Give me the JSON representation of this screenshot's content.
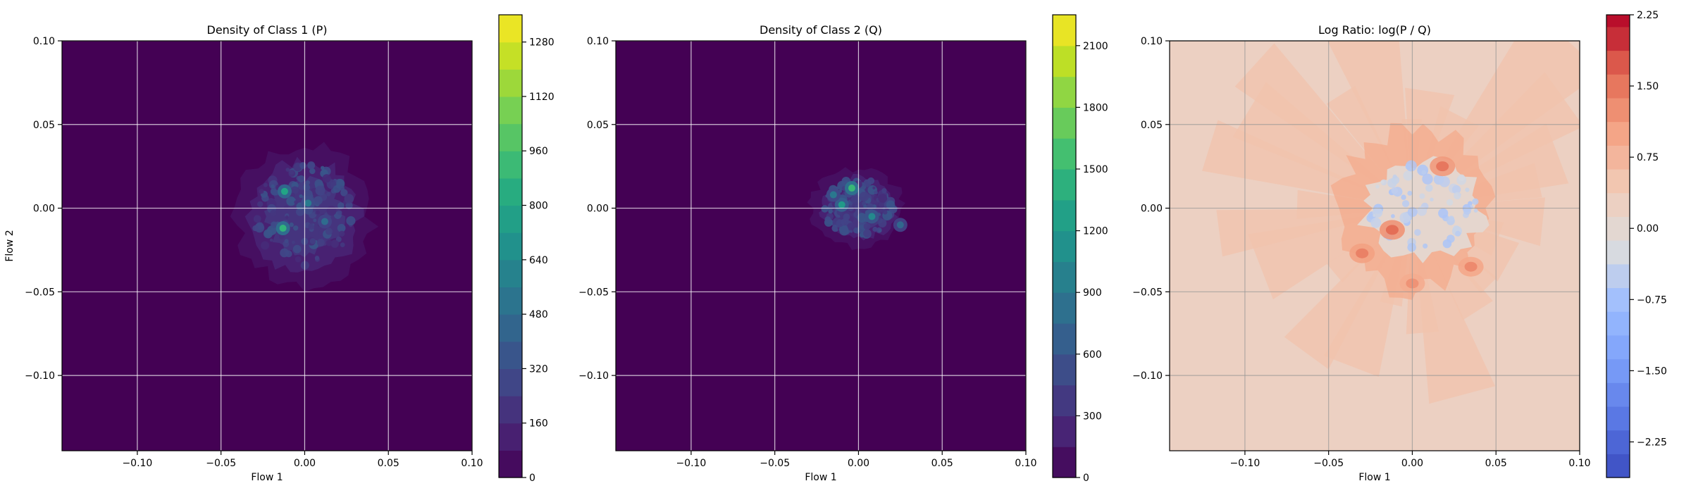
{
  "chart_data": [
    {
      "type": "heatmap",
      "title": "Density of Class 1 (P)",
      "xlabel": "Flow 1",
      "ylabel": "Flow 2",
      "xlim": [
        -0.145,
        0.1
      ],
      "ylim": [
        -0.145,
        0.1
      ],
      "x_ticks": [
        -0.1,
        -0.05,
        0.0,
        0.05,
        0.1
      ],
      "x_tick_labels": [
        "−0.10",
        "−0.05",
        "0.00",
        "0.05",
        "0.10"
      ],
      "y_ticks": [
        0.1,
        0.05,
        0.0,
        -0.05,
        -0.1
      ],
      "y_tick_labels": [
        "0.10",
        "0.05",
        "0.00",
        "−0.05",
        "−0.10"
      ],
      "grid": true,
      "colormap": "viridis",
      "colorbar": {
        "min": 0,
        "max": 1360,
        "levels": [
          0,
          80,
          160,
          240,
          320,
          400,
          480,
          560,
          640,
          720,
          800,
          880,
          960,
          1040,
          1120,
          1200,
          1280,
          1360
        ],
        "ticks": [
          0,
          160,
          320,
          480,
          640,
          800,
          960,
          1120,
          1280
        ],
        "tick_labels": [
          "0",
          "160",
          "320",
          "480",
          "640",
          "800",
          "960",
          "1120",
          "1280"
        ]
      },
      "density_region": {
        "center": [
          0.0,
          -0.005
        ],
        "extent_x": [
          -0.045,
          0.042
        ],
        "extent_y": [
          -0.048,
          0.042
        ]
      },
      "hotspots": [
        {
          "x": -0.012,
          "y": 0.01,
          "value": 800
        },
        {
          "x": -0.013,
          "y": -0.012,
          "value": 880
        },
        {
          "x": 0.002,
          "y": 0.003,
          "value": 560
        },
        {
          "x": 0.012,
          "y": -0.008,
          "value": 480
        }
      ]
    },
    {
      "type": "heatmap",
      "title": "Density of Class 2 (Q)",
      "xlabel": "Flow 1",
      "ylabel": "",
      "xlim": [
        -0.145,
        0.1
      ],
      "ylim": [
        -0.145,
        0.1
      ],
      "x_ticks": [
        -0.1,
        -0.05,
        0.0,
        0.05,
        0.1
      ],
      "x_tick_labels": [
        "−0.10",
        "−0.05",
        "0.00",
        "0.05",
        "0.10"
      ],
      "y_ticks": [
        0.1,
        0.05,
        0.0,
        -0.05,
        -0.1
      ],
      "y_tick_labels": [
        "0.10",
        "0.05",
        "0.00",
        "−0.05",
        "−0.10"
      ],
      "grid": true,
      "colormap": "viridis",
      "colorbar": {
        "min": 0,
        "max": 2250,
        "levels": [
          0,
          150,
          300,
          450,
          600,
          750,
          900,
          1050,
          1200,
          1350,
          1500,
          1650,
          1800,
          1950,
          2100,
          2250
        ],
        "ticks": [
          0,
          300,
          600,
          900,
          1200,
          1500,
          1800,
          2100
        ],
        "tick_labels": [
          "0",
          "300",
          "600",
          "900",
          "1200",
          "1500",
          "1800",
          "2100"
        ]
      },
      "density_region": {
        "center": [
          0.0,
          0.0
        ],
        "extent_x": [
          -0.03,
          0.03
        ],
        "extent_y": [
          -0.02,
          0.03
        ]
      },
      "hotspots": [
        {
          "x": -0.004,
          "y": 0.012,
          "value": 1500
        },
        {
          "x": -0.01,
          "y": 0.002,
          "value": 1200
        },
        {
          "x": 0.008,
          "y": -0.005,
          "value": 1050
        },
        {
          "x": -0.015,
          "y": 0.008,
          "value": 900
        },
        {
          "x": 0.025,
          "y": -0.01,
          "value": 750
        }
      ]
    },
    {
      "type": "heatmap",
      "title": "Log Ratio: log(P / Q)",
      "xlabel": "Flow 1",
      "ylabel": "",
      "xlim": [
        -0.145,
        0.1
      ],
      "ylim": [
        -0.145,
        0.1
      ],
      "x_ticks": [
        -0.1,
        -0.05,
        0.0,
        0.05,
        0.1
      ],
      "x_tick_labels": [
        "−0.10",
        "−0.05",
        "0.00",
        "0.05",
        "0.10"
      ],
      "y_ticks": [
        0.1,
        0.05,
        0.0,
        -0.05,
        -0.1
      ],
      "y_tick_labels": [
        "0.10",
        "0.05",
        "0.00",
        "−0.05",
        "−0.10"
      ],
      "grid": true,
      "colormap": "coolwarm",
      "background_value": 0.5,
      "colorbar": {
        "min": -2.625,
        "max": 2.25,
        "levels": [
          -2.625,
          -2.375,
          -2.125,
          -1.875,
          -1.625,
          -1.375,
          -1.125,
          -0.875,
          -0.625,
          -0.375,
          -0.125,
          0.125,
          0.375,
          0.625,
          0.875,
          1.125,
          1.375,
          1.625,
          1.875,
          2.125,
          2.25
        ],
        "ticks": [
          2.25,
          1.5,
          0.75,
          0.0,
          -0.75,
          -1.5,
          -2.25
        ],
        "tick_labels": [
          "2.25",
          "1.50",
          "0.75",
          "0.00",
          "−0.75",
          "−1.50",
          "−2.25"
        ]
      },
      "blue_region": {
        "center": [
          0.0,
          0.0
        ],
        "value": -0.6
      },
      "red_spots": [
        {
          "x": 0.018,
          "y": 0.025,
          "value": 1.5
        },
        {
          "x": -0.03,
          "y": -0.027,
          "value": 1.4
        },
        {
          "x": 0.035,
          "y": -0.035,
          "value": 1.3
        },
        {
          "x": -0.012,
          "y": -0.013,
          "value": 1.6
        },
        {
          "x": 0.0,
          "y": -0.045,
          "value": 1.2
        }
      ]
    }
  ]
}
